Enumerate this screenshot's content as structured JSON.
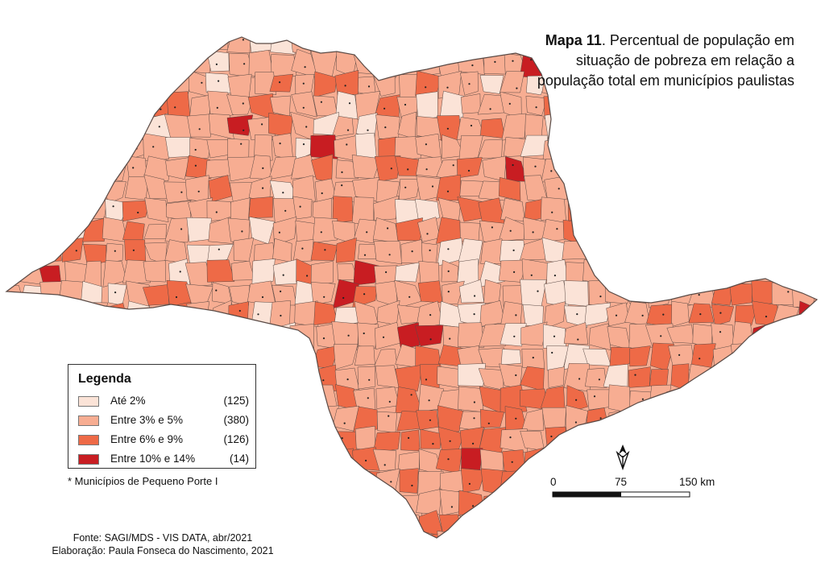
{
  "title": {
    "bold": "Mapa 11",
    "line1": ". Percentual de população em",
    "line2": "situação de pobreza em relação a",
    "line3": "população total em municípios paulistas"
  },
  "legend": {
    "title": "Legenda",
    "items": [
      {
        "label": "Até 2%",
        "count": "(125)",
        "color": "#fbe3d7"
      },
      {
        "label": "Entre 3% e 5%",
        "count": "(380)",
        "color": "#f7ad92"
      },
      {
        "label": "Entre 6% e 9%",
        "count": "(126)",
        "color": "#ee6a47"
      },
      {
        "label": "Entre 10% e 14%",
        "count": "(14)",
        "color": "#c81d22"
      }
    ]
  },
  "footnote": "* Municípios de Pequeno Porte I",
  "source": {
    "line1": "Fonte: SAGI/MDS - VIS DATA, abr/2021",
    "line2": "Elaboração: Paula Fonseca do Nascimento, 2021"
  },
  "scale": {
    "labels": [
      "0",
      "75",
      "150 km"
    ]
  },
  "north_arrow": "north-arrow-icon",
  "colors": {
    "outline": "#5a4a45",
    "class1": "#fbe3d7",
    "class2": "#f7ad92",
    "class3": "#ee6a47",
    "class4": "#c81d22"
  }
}
